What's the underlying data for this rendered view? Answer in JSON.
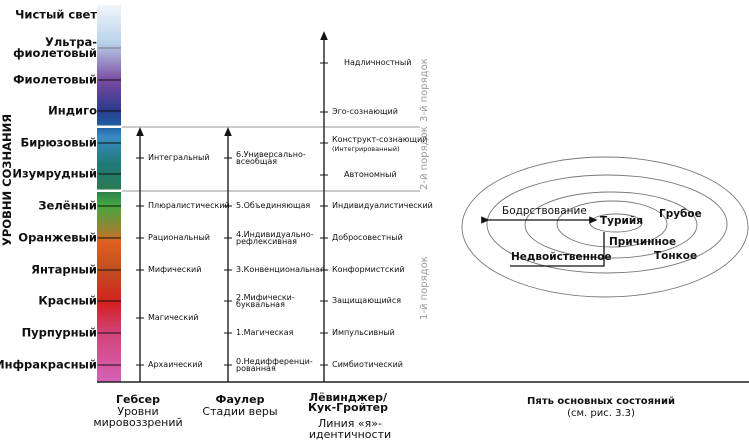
{
  "axis_title": "УРОВНИ СОЗНАНИЯ",
  "colors": {
    "gradient": [
      "#f2f5fb",
      "#b9d2ea",
      "#7a4aa2",
      "#2b3a8c",
      "#1f5fa2",
      "#3a8cc2",
      "#1f7a7a",
      "#2a7a50",
      "#42a842",
      "#a08030",
      "#e06020",
      "#c05020",
      "#d42020",
      "#d04478",
      "#d562b8"
    ],
    "order_label": "#9a9a9a",
    "divider": "#9a9a9a"
  },
  "levels": [
    "Чистый свет",
    "Ультра-фиолетовый",
    "Фиолетовый",
    "Индиго",
    "Бирюзовый",
    "Изумрудный",
    "Зелёный",
    "Оранжевый",
    "Янтарный",
    "Красный",
    "Пурпурный",
    "Инфракрасный"
  ],
  "gebser": {
    "name": "Гебсер",
    "subtitle": "Уровни мировоззрений",
    "items": [
      "Интегральный",
      "Плюралистический",
      "Рациональный",
      "Мифический",
      "Магический",
      "Архаический"
    ]
  },
  "fowler": {
    "name": "Фаулер",
    "subtitle": "Стадии веры",
    "items": [
      "6.Универсально-всеобщая",
      "5.Объединяющая",
      "4.Индивидуально-рефлексивная",
      "3.Конвенциональная",
      "2.Мифически-буквальная",
      "1.Магическая",
      "0.Недифференци-рованная"
    ]
  },
  "loevinger": {
    "name": "Лёвинджер/ Кук-Гройтер",
    "subtitle": "Линия «я»-идентичности",
    "items": [
      "Надличностный",
      "Эго-сознающий",
      "Конструкт-сознающий",
      "Автономный",
      "Индивидуалистический",
      "Добросовестный",
      "Конформистский",
      "Защищающийся",
      "Импульсивный",
      "Симбиотический"
    ],
    "construct_note": "(Интегрированный)"
  },
  "orders": [
    "3-й порядок",
    "2-й порядок",
    "1-й порядок"
  ],
  "states": {
    "title": "Пять основных состояний",
    "ref": "(см. рис. 3.3)",
    "waking": "Бодрствование",
    "turiya": "Турийя",
    "gross": "Грубое",
    "causal": "Причинное",
    "subtle": "Тонкое",
    "nondual": "Недвойственное"
  }
}
